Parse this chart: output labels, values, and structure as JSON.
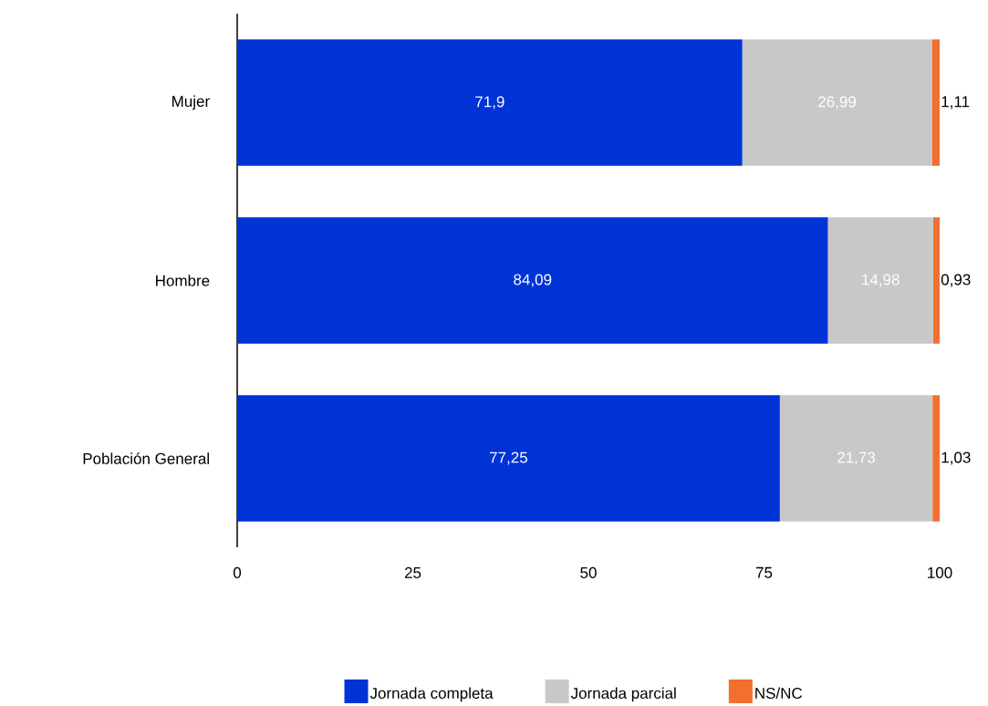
{
  "chart_data": {
    "type": "bar",
    "orientation": "horizontal",
    "stacked": true,
    "categories": [
      "Mujer",
      "Hombre",
      "Población General"
    ],
    "series": [
      {
        "name": "Jornada completa",
        "color": "#0033d6",
        "values": [
          71.9,
          84.09,
          77.25
        ],
        "value_labels": [
          "71,9",
          "84,09",
          "77,25"
        ]
      },
      {
        "name": "Jornada parcial",
        "color": "#c8c8c8",
        "values": [
          26.99,
          14.98,
          21.73
        ],
        "value_labels": [
          "26,99",
          "14,98",
          "21,73"
        ]
      },
      {
        "name": "NS/NC",
        "color": "#f26f30",
        "values": [
          1.11,
          0.93,
          1.03
        ],
        "value_labels": [
          "1,11",
          "0,93",
          "1,03"
        ]
      }
    ],
    "xlim": [
      0,
      100
    ],
    "xticks": [
      0,
      25,
      50,
      75,
      100
    ],
    "legend": "bottom"
  }
}
